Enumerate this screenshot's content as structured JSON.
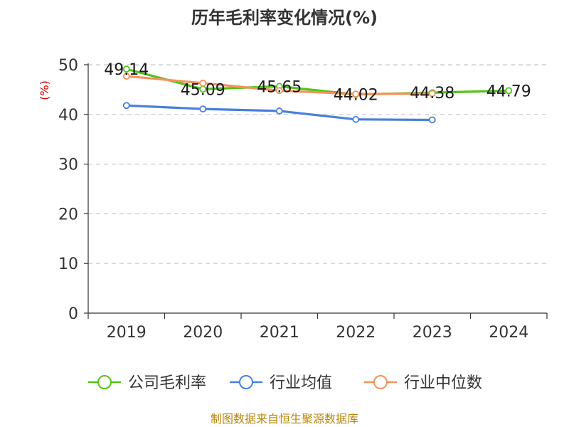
{
  "chart_data": {
    "type": "line",
    "title": "历年毛利率变化情况(%)",
    "ylabel": "(%)",
    "categories": [
      "2019",
      "2020",
      "2021",
      "2022",
      "2023",
      "2024"
    ],
    "ylim": [
      0,
      50
    ],
    "yticks": [
      "0",
      "10",
      "20",
      "30",
      "40",
      "50"
    ],
    "grid": true,
    "legend_position": "bottom",
    "series": [
      {
        "name": "公司毛利率",
        "color": "#52c41a",
        "values": [
          49.14,
          45.09,
          45.65,
          44.02,
          44.38,
          44.79
        ],
        "labels": [
          "49.14",
          "45.09",
          "45.65",
          "44.02",
          "44.38",
          "44.79"
        ]
      },
      {
        "name": "行业均值",
        "color": "#4a7fdb",
        "values": [
          41.8,
          41.1,
          40.7,
          39.0,
          38.9,
          null
        ]
      },
      {
        "name": "行业中位数",
        "color": "#f4915e",
        "values": [
          47.7,
          46.3,
          44.8,
          44.1,
          44.2,
          null
        ]
      }
    ]
  },
  "source_text": "制图数据来自恒生聚源数据库"
}
